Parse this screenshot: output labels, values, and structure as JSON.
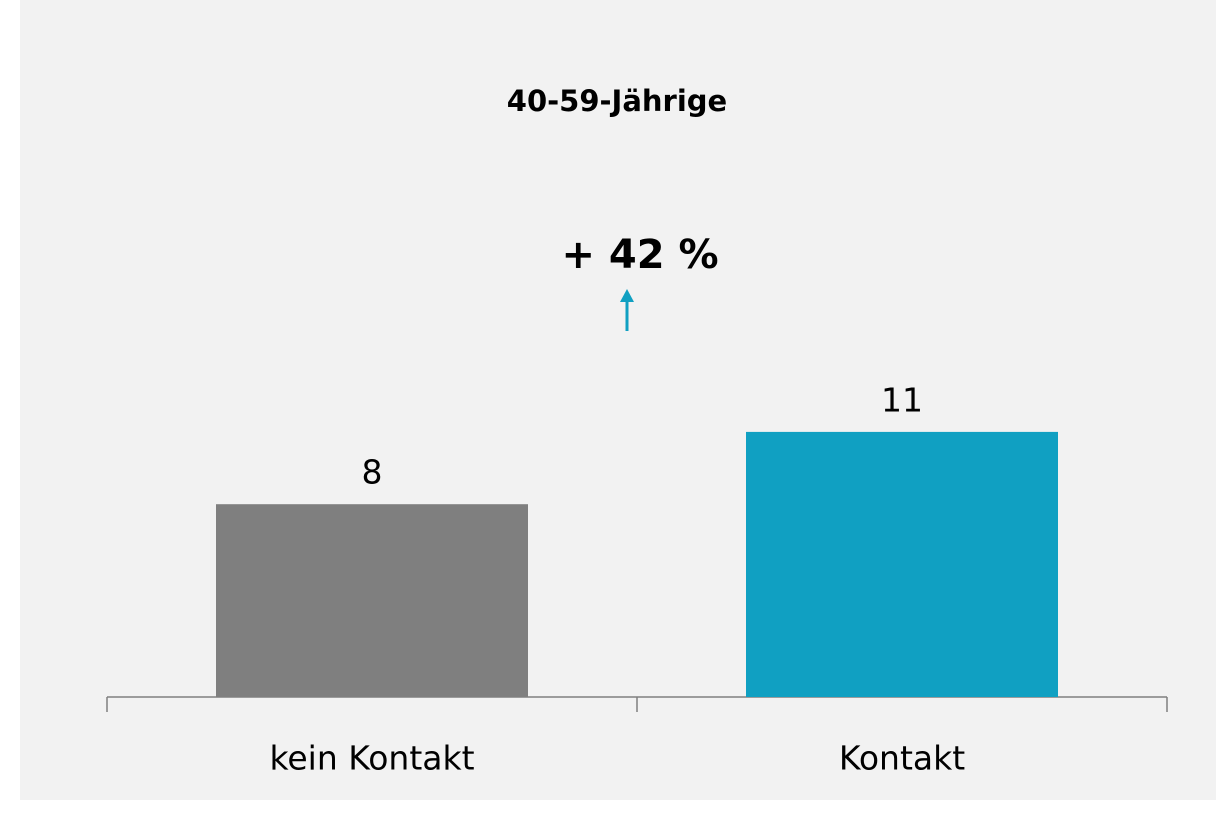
{
  "chart_data": {
    "type": "bar",
    "title": "40-59-Jährige",
    "categories": [
      "kein Kontakt",
      "Kontakt"
    ],
    "values": [
      8,
      11
    ],
    "colors": [
      "#7f7f7f",
      "#10a0c2"
    ],
    "annotation": {
      "text": "+ 42 %",
      "color": "#10a0c2"
    }
  }
}
